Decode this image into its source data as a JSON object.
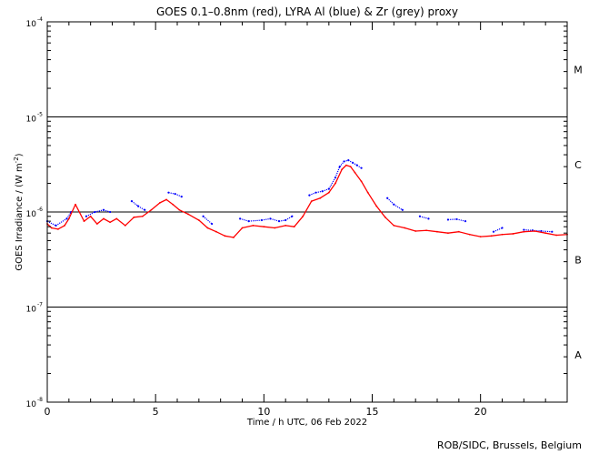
{
  "chart_data": {
    "type": "scatter",
    "title": "GOES 0.1–0.8nm (red), LYRA Al (blue) & Zr (grey) proxy",
    "xlabel": "Time / h UTC, 06 Feb 2022",
    "ylabel": "GOES Irradiance / (W m⁻²)",
    "xlim": [
      0,
      24
    ],
    "ylim": [
      1e-08,
      0.0001
    ],
    "yscale": "log",
    "x_ticks": [
      0,
      5,
      10,
      15,
      20
    ],
    "x_tick_labels": [
      "0",
      "5",
      "10",
      "15",
      "20"
    ],
    "y_ticks": [
      {
        "base": "10",
        "exp": "-4",
        "value": 0.0001
      },
      {
        "base": "10",
        "exp": "-5",
        "value": 1e-05
      },
      {
        "base": "10",
        "exp": "-6",
        "value": 1e-06
      },
      {
        "base": "10",
        "exp": "-7",
        "value": 1e-07
      },
      {
        "base": "10",
        "exp": "-8",
        "value": 1e-08
      }
    ],
    "flare_class_lines": [
      1e-05,
      1e-06,
      1e-07
    ],
    "flare_classes": [
      {
        "label": "M",
        "value": 3.16e-05
      },
      {
        "label": "C",
        "value": 3.16e-06
      },
      {
        "label": "B",
        "value": 3.16e-07
      },
      {
        "label": "A",
        "value": 3.16e-08
      }
    ],
    "series": [
      {
        "color": "#ff0000",
        "x": [
          0,
          0.2,
          0.5,
          0.8,
          1.0,
          1.3,
          1.7,
          2.0,
          2.3,
          2.6,
          2.9,
          3.2,
          3.6,
          4.0,
          4.4,
          4.8,
          5.2,
          5.5,
          5.8,
          6.1,
          6.5,
          7.0,
          7.4,
          7.8,
          8.2,
          8.6,
          9.0,
          9.5,
          10.0,
          10.5,
          11.0,
          11.4,
          11.8,
          12.2,
          12.6,
          13.0,
          13.3,
          13.6,
          13.8,
          14.0,
          14.2,
          14.5,
          14.8,
          15.2,
          15.6,
          16.0,
          16.5,
          17.0,
          17.5,
          18.0,
          18.5,
          19.0,
          19.5,
          20.0,
          20.5,
          21.0,
          21.5,
          22.0,
          22.5,
          23.0,
          23.5,
          24.0
        ],
        "y": [
          7.5e-07,
          6.8e-07,
          6.6e-07,
          7.2e-07,
          8.5e-07,
          1.2e-06,
          8e-07,
          9e-07,
          7.5e-07,
          8.5e-07,
          7.8e-07,
          8.5e-07,
          7.2e-07,
          8.8e-07,
          9e-07,
          1.05e-06,
          1.25e-06,
          1.35e-06,
          1.2e-06,
          1.05e-06,
          9.5e-07,
          8.2e-07,
          6.8e-07,
          6.2e-07,
          5.6e-07,
          5.4e-07,
          6.8e-07,
          7.2e-07,
          7e-07,
          6.8e-07,
          7.2e-07,
          7e-07,
          9e-07,
          1.3e-06,
          1.4e-06,
          1.6e-06,
          2e-06,
          2.8e-06,
          3.1e-06,
          3e-06,
          2.6e-06,
          2.1e-06,
          1.6e-06,
          1.15e-06,
          8.8e-07,
          7.2e-07,
          6.8e-07,
          6.3e-07,
          6.4e-07,
          6.2e-07,
          6e-07,
          6.2e-07,
          5.8e-07,
          5.5e-07,
          5.6e-07,
          5.8e-07,
          5.9e-07,
          6.2e-07,
          6.3e-07,
          6e-07,
          5.7e-07,
          5.8e-07
        ]
      },
      {
        "color": "#0000ff",
        "x": [
          0,
          0.4,
          0.9,
          1.1,
          1.8,
          2.2,
          2.6,
          2.9,
          3.9,
          4.2,
          4.5,
          5.6,
          5.9,
          6.2,
          7.2,
          7.6,
          8.9,
          9.3,
          9.9,
          10.3,
          10.7,
          11.0,
          11.3,
          12.1,
          12.4,
          12.7,
          13.0,
          13.3,
          13.5,
          13.7,
          13.9,
          14.1,
          14.3,
          14.5,
          15.7,
          16.0,
          16.4,
          17.2,
          17.6,
          18.5,
          18.9,
          19.3,
          20.6,
          21.0,
          22.0,
          22.4,
          22.8,
          23.3
        ],
        "y": [
          8e-07,
          7.2e-07,
          8.5e-07,
          1e-06,
          9e-07,
          1e-06,
          1.05e-06,
          1e-06,
          1.3e-06,
          1.15e-06,
          1.05e-06,
          1.6e-06,
          1.55e-06,
          1.45e-06,
          9e-07,
          7.5e-07,
          8.5e-07,
          8e-07,
          8.2e-07,
          8.5e-07,
          8e-07,
          8.2e-07,
          9e-07,
          1.5e-06,
          1.6e-06,
          1.65e-06,
          1.75e-06,
          2.3e-06,
          3e-06,
          3.4e-06,
          3.5e-06,
          3.3e-06,
          3.1e-06,
          2.9e-06,
          1.4e-06,
          1.2e-06,
          1.05e-06,
          9e-07,
          8.5e-07,
          8.3e-07,
          8.4e-07,
          8e-07,
          6.2e-07,
          6.8e-07,
          6.5e-07,
          6.4e-07,
          6.3e-07,
          6.2e-07
        ]
      }
    ]
  },
  "credit": "ROB/SIDC, Brussels, Belgium"
}
